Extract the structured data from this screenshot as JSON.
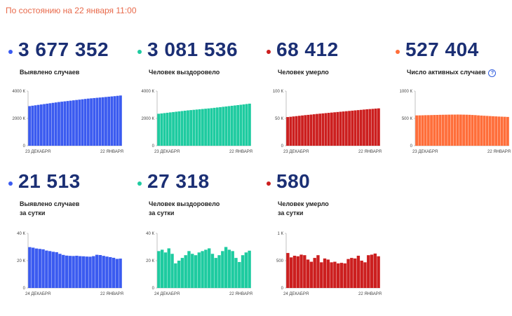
{
  "status_text": "По состоянию на 22 января 11:00",
  "cards_top": [
    {
      "value": "3 677 352",
      "label": "Выявлено случаев",
      "color": "#3b5bf0",
      "info": false
    },
    {
      "value": "3 081 536",
      "label": "Человек выздоровело",
      "color": "#1ecba0",
      "info": false
    },
    {
      "value": "68 412",
      "label": "Человек умерло",
      "color": "#cc1f1f",
      "info": false
    },
    {
      "value": "527 404",
      "label": "Число активных случаев",
      "color": "#ff6e3a",
      "info": true,
      "info_icon": "info-icon",
      "info_glyph": "?"
    }
  ],
  "cards_bottom": [
    {
      "value": "21 513",
      "label_line1": "Выявлено случаев",
      "label_line2": "за сутки",
      "color": "#3b5bf0"
    },
    {
      "value": "27 318",
      "label_line1": "Человек выздоровело",
      "label_line2": "за сутки",
      "color": "#1ecba0"
    },
    {
      "value": "580",
      "label_line1": "Человек умерло",
      "label_line2": "за сутки",
      "color": "#cc1f1f"
    }
  ],
  "chart_data": [
    {
      "type": "bar",
      "name": "cumulative-cases",
      "color": "#3b5bf0",
      "x_start": "23 ДЕКАБРЯ",
      "x_end": "22 ЯНВАРЯ",
      "y_ticks": [
        "4000 К",
        "2000 К",
        "0"
      ],
      "ylim": [
        0,
        4000
      ],
      "values": [
        2900,
        2930,
        2960,
        2990,
        3020,
        3050,
        3080,
        3110,
        3140,
        3170,
        3200,
        3225,
        3250,
        3275,
        3300,
        3325,
        3350,
        3375,
        3400,
        3425,
        3450,
        3470,
        3490,
        3510,
        3530,
        3550,
        3570,
        3590,
        3610,
        3630,
        3655,
        3677
      ]
    },
    {
      "type": "bar",
      "name": "cumulative-recovered",
      "color": "#1ecba0",
      "x_start": "23 ДЕКАБРЯ",
      "x_end": "22 ЯНВАРЯ",
      "y_ticks": [
        "4000 К",
        "2000 К",
        "0"
      ],
      "ylim": [
        0,
        4000
      ],
      "values": [
        2340,
        2365,
        2390,
        2415,
        2440,
        2465,
        2490,
        2515,
        2540,
        2565,
        2590,
        2610,
        2630,
        2650,
        2670,
        2690,
        2710,
        2730,
        2750,
        2775,
        2800,
        2825,
        2850,
        2875,
        2900,
        2925,
        2950,
        2975,
        3000,
        3025,
        3055,
        3081
      ]
    },
    {
      "type": "bar",
      "name": "cumulative-deaths",
      "color": "#cc1f1f",
      "x_start": "23 ДЕКАБРЯ",
      "x_end": "22 ЯНВАРЯ",
      "y_ticks": [
        "100 К",
        "50 К",
        "0"
      ],
      "ylim": [
        0,
        100
      ],
      "values": [
        52.5,
        53,
        53.6,
        54.2,
        54.8,
        55.4,
        56,
        56.5,
        57,
        57.6,
        58.2,
        58.7,
        59.2,
        59.7,
        60.2,
        60.7,
        61.2,
        61.7,
        62.2,
        62.7,
        63.2,
        63.7,
        64.2,
        64.7,
        65.2,
        65.7,
        66.2,
        66.7,
        67.1,
        67.5,
        68,
        68.4
      ]
    },
    {
      "type": "bar",
      "name": "active-cases",
      "color": "#ff6e3a",
      "x_start": "23 ДЕКАБРЯ",
      "x_end": "22 ЯНВАРЯ",
      "y_ticks": [
        "1000 К",
        "500 К",
        "0"
      ],
      "ylim": [
        0,
        1000
      ],
      "values": [
        555,
        556,
        557,
        559,
        560,
        561,
        563,
        564,
        566,
        567,
        568,
        569,
        570,
        570,
        571,
        570,
        569,
        568,
        566,
        563,
        560,
        556,
        552,
        549,
        546,
        543,
        540,
        537,
        534,
        532,
        530,
        527
      ]
    },
    {
      "type": "bar",
      "name": "daily-cases",
      "color": "#3b5bf0",
      "x_start": "24 ДЕКАБРЯ",
      "x_end": "22 ЯНВАРЯ",
      "y_ticks": [
        "40 К",
        "20 К",
        "0"
      ],
      "ylim": [
        0,
        40
      ],
      "values": [
        29.9,
        29.5,
        28.9,
        28.6,
        28.3,
        27.4,
        27.0,
        26.5,
        26.2,
        25.0,
        24.2,
        23.7,
        23.5,
        23.4,
        23.6,
        23.3,
        23.2,
        23.0,
        22.9,
        23.3,
        24.3,
        24.1,
        23.5,
        23.0,
        22.6,
        22.1,
        21.3,
        21.5
      ]
    },
    {
      "type": "bar",
      "name": "daily-recovered",
      "color": "#1ecba0",
      "x_start": "24 ДЕКАБРЯ",
      "x_end": "22 ЯНВАРЯ",
      "y_ticks": [
        "40 К",
        "20 К",
        "0"
      ],
      "ylim": [
        0,
        40
      ],
      "values": [
        27,
        28,
        26,
        29,
        25,
        18,
        20,
        22,
        24,
        27,
        25,
        24,
        26,
        27,
        28,
        29,
        25,
        22,
        24,
        27,
        30,
        28,
        27,
        22,
        19,
        24,
        26,
        27.3
      ]
    },
    {
      "type": "bar",
      "name": "daily-deaths",
      "color": "#cc1f1f",
      "x_start": "24 ДЕКАБРЯ",
      "x_end": "22 ЯНВАРЯ",
      "y_ticks": [
        "1 К",
        "500",
        "0"
      ],
      "ylim": [
        0,
        1000
      ],
      "values": [
        640,
        560,
        590,
        580,
        610,
        600,
        520,
        480,
        550,
        600,
        470,
        540,
        520,
        470,
        480,
        450,
        460,
        450,
        530,
        550,
        540,
        590,
        500,
        470,
        600,
        610,
        630,
        580
      ]
    }
  ]
}
